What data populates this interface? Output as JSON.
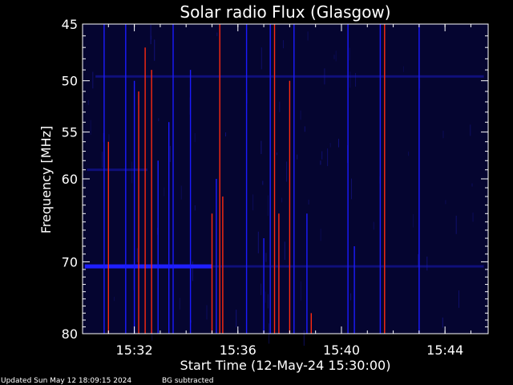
{
  "chart_data": {
    "type": "heatmap",
    "title": "Solar radio Flux (Glasgow)",
    "xlabel": "Start Time (12-May-24 15:30:00)",
    "ylabel": "Frequency [MHz]",
    "x_range": [
      "15:30:00",
      "15:45:40"
    ],
    "y_range": [
      45,
      80
    ],
    "y_scale": "log",
    "x_ticks": [
      "15:32",
      "15:36",
      "15:40",
      "15:44"
    ],
    "y_ticks": [
      45,
      50,
      55,
      60,
      70,
      80
    ],
    "colors": {
      "background": "#000000",
      "base": "#050530",
      "weak": "#1a1aff",
      "strong": "#ff2a10",
      "axes": "#ffffff"
    },
    "bands": [
      {
        "freq": 70.6,
        "start": "15:30:05",
        "end": "15:35:00",
        "level": "strong-blue"
      },
      {
        "freq": 49.6,
        "start": "15:30:30",
        "end": "15:45:30",
        "level": "weak"
      },
      {
        "freq": 59.0,
        "start": "15:30:10",
        "end": "15:32:30",
        "level": "weak"
      },
      {
        "freq": 70.6,
        "start": "15:35:00",
        "end": "15:45:30",
        "level": "weak"
      }
    ],
    "bursts_red": [
      {
        "time": "15:31:00",
        "f_start": 56,
        "f_end": 80
      },
      {
        "time": "15:32:10",
        "f_start": 51,
        "f_end": 80
      },
      {
        "time": "15:32:25",
        "f_start": 47,
        "f_end": 80
      },
      {
        "time": "15:32:40",
        "f_start": 49,
        "f_end": 80
      },
      {
        "time": "15:35:00",
        "f_start": 64,
        "f_end": 80
      },
      {
        "time": "15:35:18",
        "f_start": 45,
        "f_end": 80
      },
      {
        "time": "15:35:25",
        "f_start": 62,
        "f_end": 80
      },
      {
        "time": "15:37:25",
        "f_start": 45,
        "f_end": 80
      },
      {
        "time": "15:37:35",
        "f_start": 64,
        "f_end": 80
      },
      {
        "time": "15:38:00",
        "f_start": 50,
        "f_end": 80
      },
      {
        "time": "15:38:50",
        "f_start": 77,
        "f_end": 80
      },
      {
        "time": "15:41:40",
        "f_start": 45,
        "f_end": 80
      }
    ],
    "bursts_blue": [
      {
        "time": "15:30:50",
        "f_start": 45,
        "f_end": 80
      },
      {
        "time": "15:31:40",
        "f_start": 45,
        "f_end": 80
      },
      {
        "time": "15:32:00",
        "f_start": 50,
        "f_end": 80
      },
      {
        "time": "15:32:55",
        "f_start": 58,
        "f_end": 80
      },
      {
        "time": "15:33:20",
        "f_start": 54,
        "f_end": 80
      },
      {
        "time": "15:33:30",
        "f_start": 45,
        "f_end": 80
      },
      {
        "time": "15:34:10",
        "f_start": 49,
        "f_end": 80
      },
      {
        "time": "15:35:10",
        "f_start": 60,
        "f_end": 80
      },
      {
        "time": "15:36:20",
        "f_start": 45,
        "f_end": 80
      },
      {
        "time": "15:37:00",
        "f_start": 67,
        "f_end": 80
      },
      {
        "time": "15:37:15",
        "f_start": 45,
        "f_end": 80
      },
      {
        "time": "15:38:10",
        "f_start": 45,
        "f_end": 80
      },
      {
        "time": "15:38:40",
        "f_start": 64,
        "f_end": 80
      },
      {
        "time": "15:40:15",
        "f_start": 45,
        "f_end": 80
      },
      {
        "time": "15:40:30",
        "f_start": 68,
        "f_end": 80
      },
      {
        "time": "15:41:30",
        "f_start": 45,
        "f_end": 80
      },
      {
        "time": "15:43:00",
        "f_start": 45,
        "f_end": 80
      }
    ]
  },
  "footer": {
    "updated": "Updated Sun May 12 18:09:15 2024",
    "note": "BG subtracted"
  }
}
